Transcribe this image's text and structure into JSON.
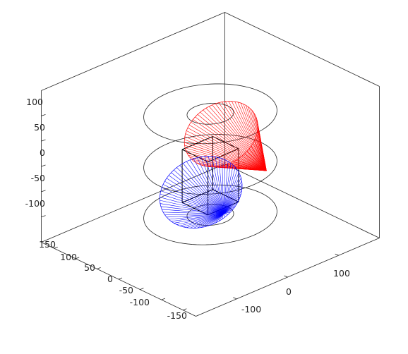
{
  "chart_data": {
    "type": "3d-line",
    "title": "",
    "xlabel": "",
    "ylabel": "",
    "zlabel": "",
    "grid": false,
    "legend": "none",
    "z_ticks": [
      "100",
      "50",
      "0",
      "-50",
      "-100"
    ],
    "left_ticks": [
      "150",
      "100",
      "50",
      "0",
      "-50",
      "-100",
      "-150"
    ],
    "right_ticks": [
      "-100",
      "0",
      "100"
    ],
    "colors": {
      "box": "#262626",
      "series_red": "#ff0000",
      "series_blue": "#0000ff"
    },
    "series": [
      {
        "color": "red",
        "apex": [
          0,
          -110,
          -60
        ],
        "base_center": [
          25,
          0,
          70
        ],
        "base_radius": 60,
        "spoke_count": 70
      },
      {
        "color": "blue",
        "apex": [
          90,
          50,
          -40
        ],
        "base_center": [
          -10,
          10,
          -55
        ],
        "base_radius": 65,
        "spoke_count": 70
      }
    ],
    "reference_circles": [
      {
        "z": 100,
        "radius": 35
      },
      {
        "z": 100,
        "radius": 100
      },
      {
        "z": 0,
        "radius": 100
      },
      {
        "z": -100,
        "radius": 100
      },
      {
        "z": -100,
        "radius": 35
      }
    ],
    "center_cube": {
      "x": [
        -30,
        30
      ],
      "y": [
        -30,
        30
      ],
      "z": [
        -75,
        30
      ]
    }
  }
}
